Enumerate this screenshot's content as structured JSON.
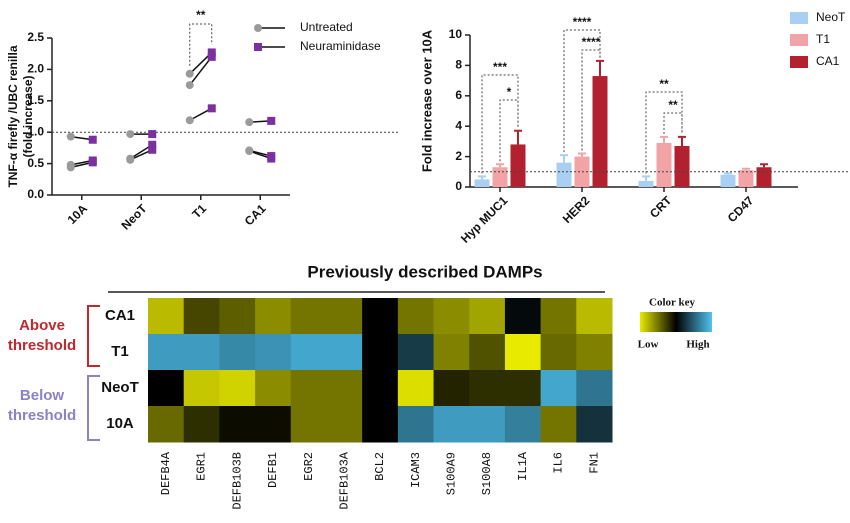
{
  "chart_data": [
    {
      "type": "paired",
      "ylabel": [
        "TNF-α firefly /UBC renilla",
        "(fold increase)"
      ],
      "categories": [
        "10A",
        "NeoT",
        "T1",
        "CA1"
      ],
      "series": [
        {
          "name": "Untreated",
          "color": "#9a9a9a",
          "values": [
            [
              0.93,
              0.48,
              0.44
            ],
            [
              0.97,
              0.58,
              0.56
            ],
            [
              1.93,
              1.75,
              1.19
            ],
            [
              1.16,
              0.71,
              0.7
            ]
          ]
        },
        {
          "name": "Neuraminidase",
          "color": "#7b2fa0",
          "values": [
            [
              0.88,
              0.55,
              0.52
            ],
            [
              0.97,
              0.8,
              0.72
            ],
            [
              2.27,
              2.2,
              1.38
            ],
            [
              1.18,
              0.62,
              0.58
            ]
          ]
        }
      ],
      "ylim": [
        0,
        2.5
      ],
      "yticks": [
        {
          "value": 0,
          "label": "0.0"
        },
        0.5,
        {
          "value": 1,
          "label": "1.0"
        },
        1.5,
        {
          "value": 2,
          "label": "2.0"
        },
        2.5
      ],
      "reference_line": 1,
      "annotations": [
        "**"
      ]
    },
    {
      "type": "bar",
      "ylabel": "Fold increase over 10A",
      "categories": [
        "Hyp MUC1",
        "HER2",
        "CRT",
        "CD47"
      ],
      "series": [
        {
          "name": "NeoT",
          "color": "#a9d0f2",
          "values": [
            0.5,
            1.6,
            0.4,
            0.8
          ],
          "errors": [
            0.2,
            0.5,
            0.3,
            0.1
          ]
        },
        {
          "name": "T1",
          "color": "#f2a3a6",
          "values": [
            1.3,
            2.0,
            2.9,
            1.1
          ],
          "errors": [
            0.2,
            0.2,
            0.4,
            0.1
          ]
        },
        {
          "name": "CA1",
          "color": "#b3212e",
          "values": [
            2.8,
            7.3,
            2.7,
            1.3
          ],
          "errors": [
            0.9,
            1.0,
            0.6,
            0.2
          ]
        }
      ],
      "ylim": [
        0,
        10
      ],
      "yticks": [
        0,
        2,
        4,
        6,
        8,
        10
      ],
      "reference_line": 1,
      "annotations": [
        "***",
        "*",
        "****",
        "****",
        "**",
        "**"
      ]
    },
    {
      "type": "heatmap",
      "title": "Previously described DAMPs",
      "rows": [
        "CA1",
        "T1",
        "NeoT",
        "10A"
      ],
      "columns": [
        "DEFB4A",
        "EGR1",
        "DEFB103B",
        "DEFB1",
        "EGR2",
        "DEFB103A",
        "BCL2",
        "ICAM3",
        "S100A9",
        "S100A8",
        "IL1A",
        "IL6",
        "FN1"
      ],
      "values": [
        [
          -0.8,
          -0.3,
          -0.4,
          -0.6,
          -0.5,
          -0.5,
          0,
          -0.5,
          -0.6,
          -0.7,
          0.05,
          -0.5,
          -0.8
        ],
        [
          0.8,
          0.8,
          0.7,
          0.75,
          0.85,
          0.85,
          0,
          0.3,
          -0.55,
          -0.35,
          -1,
          -0.45,
          -0.55
        ],
        [
          0,
          -0.85,
          -0.9,
          -0.6,
          -0.5,
          -0.5,
          0,
          -0.95,
          -0.15,
          -0.2,
          -0.2,
          0.85,
          0.6
        ],
        [
          -0.45,
          -0.2,
          -0.05,
          -0.05,
          -0.5,
          -0.5,
          0,
          0.6,
          0.8,
          0.8,
          0.65,
          -0.5,
          0.25
        ]
      ],
      "zlim": [
        -1,
        1
      ],
      "groups": [
        {
          "label": [
            "Above",
            "threshold"
          ],
          "color": "#c0282e"
        },
        {
          "label": [
            "Below",
            "threshold"
          ],
          "color": "#8a82c8"
        }
      ],
      "color_key": {
        "title": "Color key",
        "low": "Low",
        "high": "High",
        "low_color": "#e8ea00",
        "mid_color": "#000000",
        "high_color": "#4fc3f0"
      }
    }
  ]
}
